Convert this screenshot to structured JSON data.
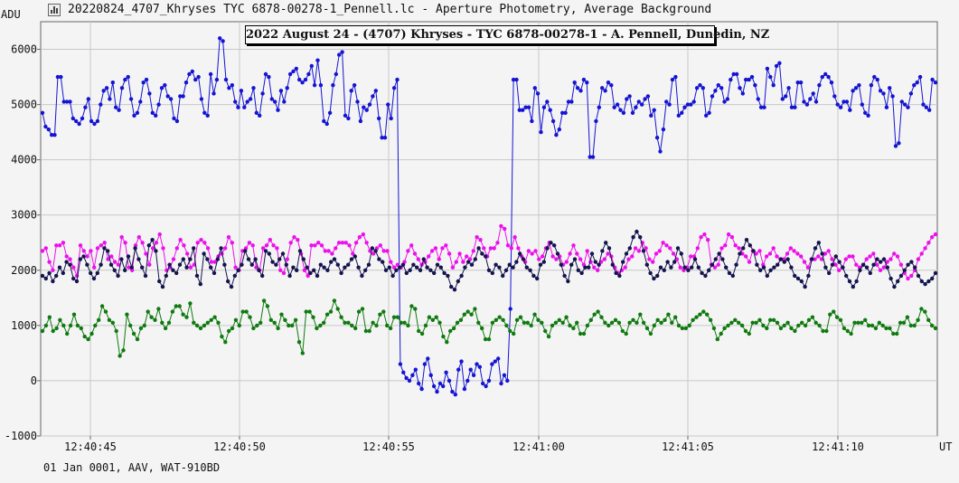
{
  "window": {
    "title": "20220824_4707_Khryses TYC 6878-00278-1_Pennell.lc - Aperture Photometry, Average Background",
    "icon": "bar-chart-icon"
  },
  "footer": "01 Jan 0001, AAV, WAT-910BD",
  "chart_data": {
    "type": "line",
    "title": "2022 August 24 - (4707) Khryses - TYC 6878-00278-1 - A. Pennell, Dunedin, NZ",
    "ylabel": "ADU",
    "xlabel": "UT",
    "ylim": [
      -1000,
      6500
    ],
    "yticks": [
      -1000,
      0,
      1000,
      2000,
      3000,
      4000,
      5000,
      6000
    ],
    "xticks": [
      "12:40:45",
      "12:40:50",
      "12:40:55",
      "12:41:00",
      "12:41:05",
      "12:41:10"
    ],
    "grid": true,
    "series": [
      {
        "color": "#1414d2",
        "values": [
          4850,
          4600,
          4550,
          4450,
          4450,
          5500,
          5500,
          5050,
          5050,
          5050,
          4750,
          4700,
          4650,
          4750,
          4950,
          5100,
          4700,
          4650,
          4700,
          5000,
          5250,
          5300,
          5100,
          5400,
          4950,
          4900,
          5300,
          5450,
          5500,
          5100,
          4800,
          4850,
          5050,
          5400,
          5450,
          5200,
          4850,
          4800,
          5000,
          5300,
          5350,
          5150,
          5100,
          4750,
          4700,
          5150,
          5150,
          5400,
          5550,
          5600,
          5450,
          5500,
          5100,
          4850,
          4800,
          5550,
          5200,
          5450,
          6200,
          6150,
          5450,
          5300,
          5350,
          5050,
          4950,
          5250,
          4950,
          5050,
          5100,
          5300,
          4850,
          4800,
          5200,
          5550,
          5500,
          5100,
          5050,
          4900,
          5250,
          5050,
          5300,
          5550,
          5600,
          5650,
          5450,
          5400,
          5450,
          5550,
          5700,
          5350,
          5800,
          5350,
          4700,
          4650,
          4850,
          5350,
          5550,
          5900,
          5950,
          4800,
          4750,
          5250,
          5350,
          5050,
          4700,
          4950,
          4900,
          5000,
          5150,
          5250,
          4750,
          4400,
          4400,
          5000,
          4750,
          5300,
          5450,
          5500,
          5450,
          5350,
          2350,
          1350,
          1300,
          5450,
          5450,
          4900,
          4900,
          4950,
          4950,
          4700,
          5300,
          5200,
          4500,
          4950,
          5050,
          4900,
          4700,
          4450,
          4550,
          4850,
          4850,
          5050,
          5050,
          5400,
          5300,
          5250,
          5450,
          5400,
          4050,
          4050,
          4700,
          4950,
          5300,
          5250,
          5400,
          5350,
          4950,
          5000,
          4900,
          4850,
          5100,
          5150,
          4850,
          4950,
          5050,
          5000,
          5100,
          5150,
          4800,
          4900,
          4400,
          4150,
          4550,
          5050,
          5000,
          5450,
          5500,
          4800,
          4850,
          4950,
          5000,
          5000,
          5050,
          5300,
          5350,
          5300,
          4800,
          4850,
          5150,
          5250,
          5350,
          5300,
          5050,
          5100,
          5450,
          5550,
          5550,
          5300,
          5200,
          5450,
          5450,
          5500,
          5350,
          5100,
          4950,
          4950,
          5650,
          5500,
          5350,
          5700,
          5750,
          5100,
          5150,
          5300,
          4950,
          4950,
          5400,
          5400,
          5050,
          5000,
          5100,
          5200,
          5050,
          5350,
          5500,
          5550,
          5500,
          5400,
          5150,
          5000,
          4950,
          5050,
          5050,
          4900,
          5250,
          5300,
          5350,
          5000,
          4850,
          4800,
          5350,
          5500,
          5450,
          5250,
          5200,
          4950,
          5300,
          5150,
          4250,
          4300,
          5050,
          5000,
          4950,
          5200,
          5350,
          5400,
          5500,
          5000,
          4950,
          4900,
          5450,
          5400
        ],
        "dip": {
          "start": 117,
          "end": 122,
          "values": [
            300,
            150,
            50,
            0,
            100,
            200,
            -50,
            -150,
            300,
            400,
            100,
            -100,
            -200,
            -50,
            -100,
            150,
            0,
            -200,
            -250,
            200,
            350,
            -150,
            0,
            200,
            100,
            300,
            250,
            -50,
            -100,
            0,
            300,
            350,
            400,
            -50,
            100,
            0
          ]
        }
      },
      {
        "color": "#ec10ec",
        "values": [
          2350,
          2400,
          2150,
          2000,
          2450,
          2450,
          2500,
          2250,
          2200,
          2050,
          1900,
          2450,
          2350,
          2250,
          2350,
          2050,
          2400,
          2450,
          2500,
          2200,
          2250,
          2150,
          2100,
          2600,
          2500,
          2050,
          2000,
          2450,
          2600,
          2500,
          2300,
          2100,
          2400,
          2500,
          2650,
          2400,
          2000,
          2050,
          2200,
          2400,
          2550,
          2450,
          2300,
          2050,
          2100,
          2500,
          2550,
          2500,
          2400,
          2150,
          2150,
          2250,
          2300,
          2400,
          2600,
          2500,
          2050,
          2000,
          2350,
          2400,
          2500,
          2450,
          2050,
          2000,
          2400,
          2450,
          2550,
          2450,
          2400,
          2000,
          1950,
          2200,
          2500,
          2600,
          2550,
          2300,
          2000,
          1900,
          2450,
          2450,
          2500,
          2450,
          2350,
          2350,
          2300,
          2400,
          2500,
          2500,
          2500,
          2450,
          2300,
          2500,
          2600,
          2650,
          2500,
          2350,
          2300,
          2400,
          2450,
          2350,
          2350,
          2150,
          2050,
          2100,
          2050,
          2150,
          2350,
          2450,
          2300,
          2200,
          2100,
          2150,
          2250,
          2350,
          2400,
          2200,
          2400,
          2450,
          2300,
          2050,
          2150,
          2300,
          2150,
          2250,
          2200,
          2350,
          2600,
          2550,
          2400,
          2250,
          2400,
          2400,
          2500,
          2800,
          2750,
          2450,
          2400,
          2600,
          2400,
          2250,
          2150,
          2350,
          2300,
          2350,
          2200,
          2250,
          2400,
          2500,
          2250,
          2200,
          2250,
          2100,
          2150,
          2300,
          2450,
          2300,
          2200,
          2100,
          2350,
          2150,
          2050,
          2000,
          2150,
          2200,
          2300,
          2250,
          2050,
          1950,
          2000,
          2050,
          2200,
          2250,
          2400,
          2350,
          2500,
          2400,
          2200,
          2150,
          2300,
          2350,
          2500,
          2450,
          2400,
          2300,
          2200,
          2050,
          2000,
          2050,
          2250,
          2250,
          2400,
          2600,
          2650,
          2550,
          2100,
          2050,
          2100,
          2400,
          2450,
          2650,
          2600,
          2450,
          2400,
          2300,
          2250,
          2150,
          2350,
          2300,
          2350,
          2100,
          2250,
          2300,
          2400,
          2250,
          2200,
          2200,
          2300,
          2400,
          2350,
          2300,
          2250,
          2150,
          2050,
          2200,
          2200,
          2250,
          2200,
          2300,
          2350,
          2200,
          2100,
          2000,
          2050,
          2200,
          2250,
          2250,
          2100,
          2050,
          2100,
          2200,
          2250,
          2300,
          2100,
          2000,
          2050,
          2150,
          2200,
          2300,
          2250,
          2100,
          1950,
          1850,
          1900,
          2000,
          2200,
          2300,
          2400,
          2500,
          2600,
          2650
        ]
      },
      {
        "color": "#14144e",
        "values": [
          1900,
          1850,
          1950,
          1800,
          1900,
          2050,
          1950,
          2150,
          2100,
          1850,
          1800,
          2200,
          2250,
          2100,
          1950,
          1850,
          1950,
          2100,
          2400,
          2350,
          2100,
          2000,
          1900,
          2200,
          2000,
          2250,
          2050,
          2400,
          2200,
          2050,
          1900,
          2450,
          2550,
          2350,
          1800,
          1700,
          1900,
          2100,
          2000,
          1950,
          2100,
          2200,
          2050,
          2200,
          2400,
          1900,
          1750,
          2300,
          2200,
          2050,
          1950,
          2200,
          2400,
          2100,
          1800,
          1700,
          1900,
          2000,
          2100,
          2350,
          2200,
          2100,
          2200,
          2000,
          1900,
          2350,
          2300,
          2150,
          2100,
          2200,
          2300,
          2100,
          1900,
          2050,
          2000,
          2350,
          2200,
          2050,
          1950,
          2000,
          1900,
          2100,
          2050,
          2000,
          2150,
          2200,
          2100,
          1950,
          2050,
          2100,
          2200,
          2250,
          2050,
          1900,
          2000,
          2100,
          2400,
          2350,
          2200,
          2150,
          2000,
          2050,
          1900,
          2000,
          2050,
          2100,
          1950,
          2000,
          2100,
          2050,
          2000,
          2200,
          2050,
          2000,
          1950,
          2100,
          2050,
          1950,
          1900,
          1700,
          1650,
          1800,
          1900,
          2050,
          2150,
          2100,
          2200,
          2400,
          2300,
          2250,
          2000,
          1950,
          2100,
          2050,
          1900,
          2000,
          2100,
          2050,
          2150,
          2300,
          2200,
          2050,
          2000,
          1900,
          1850,
          2100,
          2150,
          2400,
          2500,
          2450,
          2300,
          2100,
          1900,
          1800,
          2100,
          2200,
          2000,
          1950,
          2050,
          2050,
          2300,
          2150,
          2100,
          2350,
          2500,
          2400,
          2100,
          1950,
          1900,
          2150,
          2300,
          2400,
          2600,
          2700,
          2600,
          2350,
          2100,
          1950,
          1850,
          1900,
          2050,
          2000,
          2150,
          2050,
          2150,
          2400,
          2300,
          2050,
          2000,
          2050,
          2200,
          2050,
          1950,
          1900,
          2000,
          2100,
          2200,
          2300,
          2200,
          2050,
          1950,
          1900,
          2100,
          2300,
          2400,
          2550,
          2450,
          2350,
          2100,
          2000,
          2050,
          1900,
          2000,
          2050,
          2100,
          2200,
          2150,
          2200,
          2050,
          1900,
          1850,
          1800,
          1700,
          1900,
          2200,
          2400,
          2500,
          2300,
          2050,
          1950,
          2100,
          2250,
          2150,
          2050,
          1900,
          1800,
          1700,
          1800,
          2000,
          2100,
          2050,
          1950,
          2100,
          2200,
          2150,
          2200,
          2050,
          1850,
          1700,
          1800,
          1900,
          2000,
          2100,
          2150,
          2050,
          1900,
          1800,
          1750,
          1800,
          1850,
          1950
        ]
      },
      {
        "color": "#0f7a0f",
        "values": [
          900,
          1000,
          1150,
          900,
          950,
          1100,
          1000,
          850,
          1000,
          1200,
          1000,
          950,
          800,
          750,
          850,
          1000,
          1100,
          1350,
          1250,
          1100,
          1050,
          900,
          450,
          550,
          1200,
          1000,
          850,
          750,
          950,
          1000,
          1250,
          1150,
          1100,
          1300,
          1050,
          950,
          1050,
          1250,
          1350,
          1350,
          1200,
          1150,
          1400,
          1050,
          1000,
          950,
          1000,
          1050,
          1100,
          1150,
          1050,
          800,
          700,
          900,
          950,
          1100,
          1000,
          1250,
          1250,
          1150,
          950,
          1000,
          1050,
          1450,
          1350,
          1100,
          1050,
          950,
          1200,
          1100,
          1000,
          1000,
          1100,
          700,
          500,
          1250,
          1250,
          1150,
          950,
          1000,
          1050,
          1200,
          1250,
          1450,
          1300,
          1150,
          1050,
          1050,
          1000,
          950,
          1250,
          1300,
          900,
          900,
          1050,
          1000,
          1200,
          1250,
          1000,
          950,
          1150,
          1150,
          1050,
          1050,
          1000,
          1350,
          1300,
          900,
          850,
          1000,
          1150,
          1100,
          1150,
          1050,
          800,
          700,
          900,
          950,
          1050,
          1100,
          1200,
          1250,
          1200,
          1300,
          1050,
          950,
          750,
          750,
          1050,
          1100,
          1150,
          1100,
          1000,
          900,
          850,
          1100,
          1150,
          1050,
          1050,
          1000,
          1200,
          1100,
          1050,
          900,
          800,
          1000,
          1050,
          1100,
          1050,
          1150,
          1000,
          950,
          1050,
          850,
          850,
          1000,
          1100,
          1200,
          1250,
          1150,
          1050,
          1000,
          1050,
          1100,
          1050,
          900,
          850,
          1050,
          1100,
          1050,
          1200,
          1050,
          950,
          850,
          1000,
          1100,
          1050,
          1100,
          1200,
          1050,
          1150,
          1000,
          950,
          950,
          1000,
          1100,
          1150,
          1200,
          1250,
          1200,
          1100,
          950,
          750,
          850,
          950,
          1000,
          1050,
          1100,
          1050,
          1000,
          900,
          850,
          1050,
          1050,
          1100,
          1000,
          950,
          1100,
          1100,
          1050,
          950,
          1000,
          1050,
          950,
          900,
          1000,
          1050,
          1000,
          1100,
          1150,
          1050,
          1000,
          900,
          900,
          1200,
          1250,
          1150,
          1100,
          950,
          900,
          850,
          1050,
          1050,
          1050,
          1100,
          1000,
          1000,
          950,
          1050,
          1000,
          950,
          950,
          850,
          850,
          1050,
          1050,
          1150,
          1000,
          1000,
          1100,
          1300,
          1250,
          1100,
          1000,
          950
        ]
      }
    ]
  }
}
